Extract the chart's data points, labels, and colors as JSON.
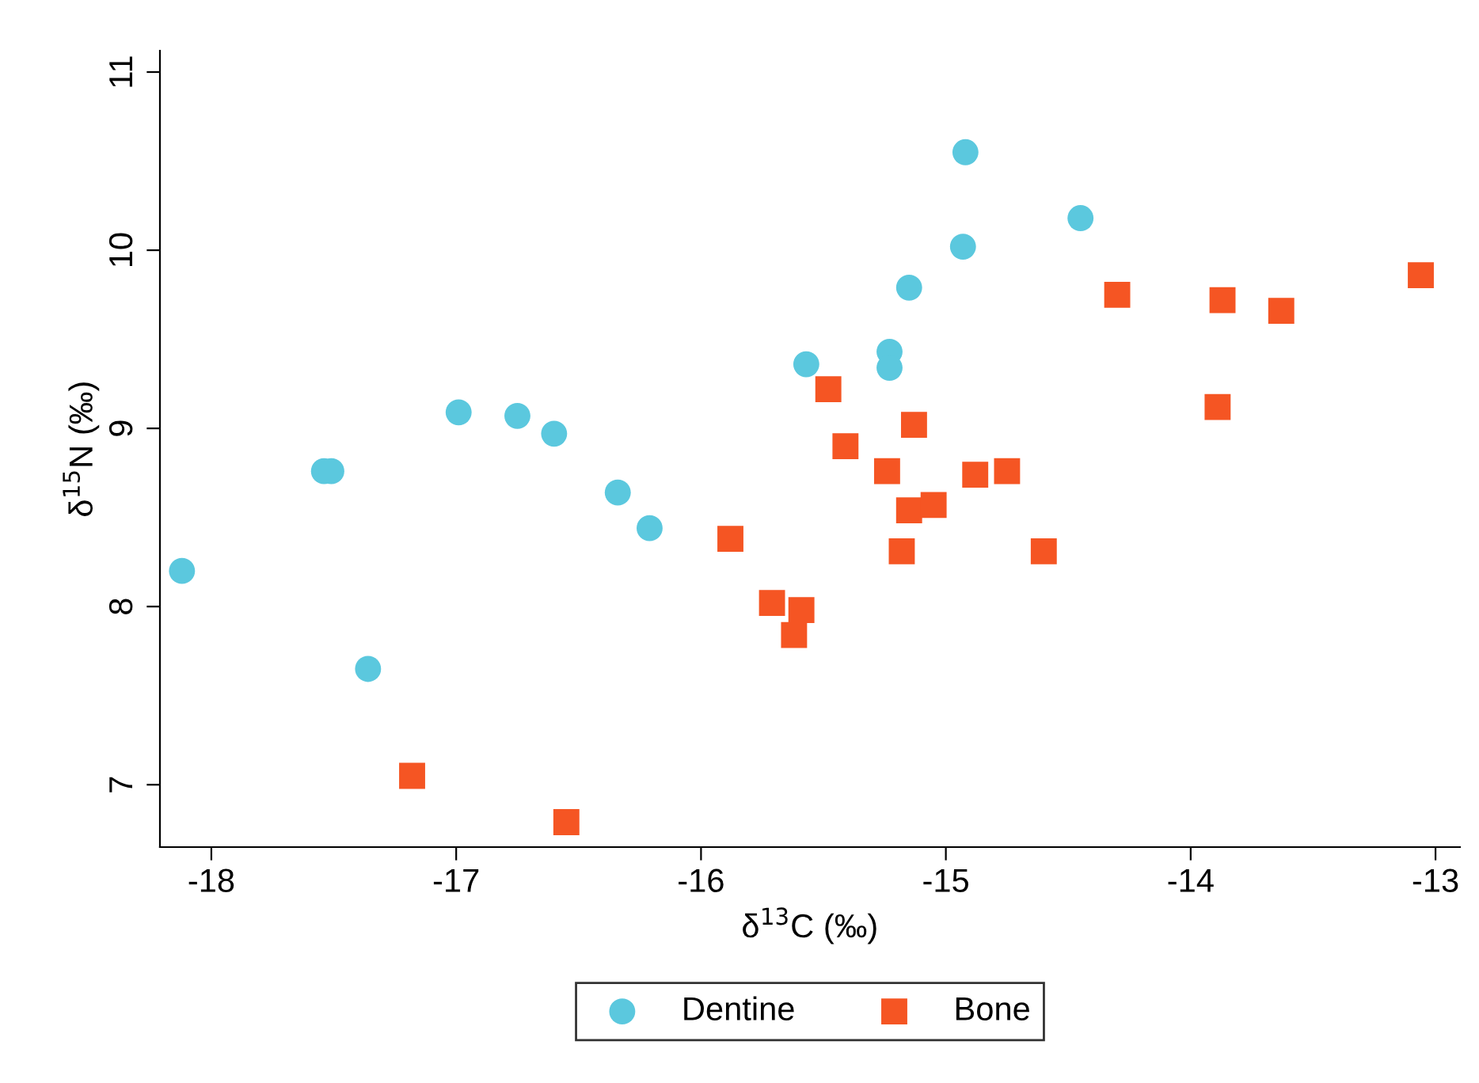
{
  "chart_data": {
    "type": "scatter",
    "xlabel": "δ$^{13}$C (‰)",
    "ylabel": "δ$^{15}$N (‰)",
    "xlim": [
      -18.21,
      -12.9
    ],
    "ylim": [
      6.65,
      11.12
    ],
    "xticks": [
      -18,
      -17,
      -16,
      -15,
      -14,
      -13
    ],
    "yticks": [
      7,
      8,
      9,
      10,
      11
    ],
    "grid": false,
    "legend": "bottom",
    "series": [
      {
        "name": "Dentine",
        "color": "#5bc8de",
        "marker": "circle",
        "x": [
          -18.12,
          -17.54,
          -17.51,
          -17.36,
          -16.99,
          -16.75,
          -16.6,
          -16.34,
          -16.21,
          -15.57,
          -15.23,
          -15.23,
          -15.15,
          -14.93,
          -14.92,
          -14.45
        ],
        "values": [
          8.2,
          8.76,
          8.76,
          7.65,
          9.09,
          9.07,
          8.97,
          8.64,
          8.44,
          9.36,
          9.43,
          9.34,
          9.79,
          10.02,
          10.55,
          10.18
        ]
      },
      {
        "name": "Bone",
        "color": "#f55523",
        "marker": "square",
        "x": [
          -17.18,
          -16.55,
          -15.88,
          -15.71,
          -15.62,
          -15.59,
          -15.48,
          -15.41,
          -15.24,
          -15.13,
          -15.15,
          -15.18,
          -15.05,
          -14.88,
          -14.75,
          -14.6,
          -14.3,
          -13.87,
          -13.89,
          -13.63,
          -13.06
        ],
        "values": [
          7.05,
          6.79,
          8.38,
          8.02,
          7.84,
          7.98,
          9.22,
          8.9,
          8.76,
          9.02,
          8.54,
          8.31,
          8.57,
          8.74,
          8.76,
          8.31,
          9.75,
          9.72,
          9.12,
          9.66,
          9.86
        ]
      }
    ]
  }
}
